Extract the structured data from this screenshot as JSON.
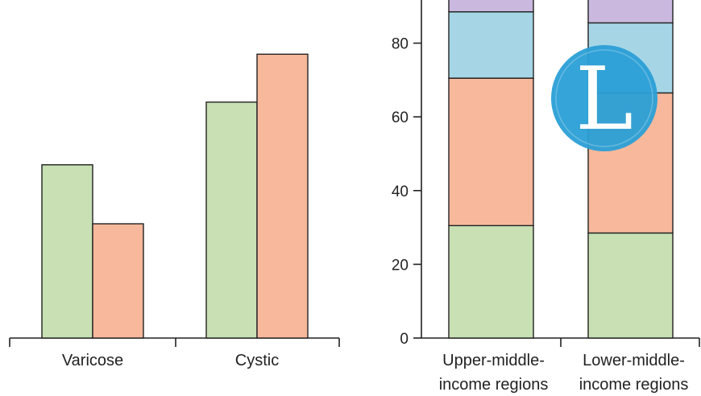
{
  "chart_data": [
    {
      "type": "bar",
      "categories": [
        "Varicose",
        "Cystic"
      ],
      "series": [
        {
          "values": [
            47,
            64
          ],
          "color": "#c8e0b4"
        },
        {
          "values": [
            31,
            77
          ],
          "color": "#f7b89c"
        }
      ],
      "ylim": [
        0,
        92
      ],
      "grid": false
    },
    {
      "type": "bar",
      "stacked": true,
      "categories": [
        "Upper-middle-income regions",
        "Lower-middle-income regions"
      ],
      "category_lines": [
        [
          "Upper-middle-",
          "income regions"
        ],
        [
          "Lower-middle-",
          "income regions"
        ]
      ],
      "series": [
        {
          "values": [
            30.5,
            28.5
          ],
          "color": "#c8e0b4"
        },
        {
          "values": [
            40,
            38
          ],
          "color": "#f7b89c"
        },
        {
          "values": [
            18,
            19
          ],
          "color": "#a6d6e6"
        },
        {
          "values": [
            11.5,
            14.5
          ],
          "color": "#cbb8df"
        }
      ],
      "yticks": [
        0,
        20,
        40,
        60,
        80
      ],
      "ylim": [
        0,
        92
      ],
      "grid": false
    }
  ],
  "watermark": {
    "letter": "L",
    "color": "#2a9fd6"
  }
}
